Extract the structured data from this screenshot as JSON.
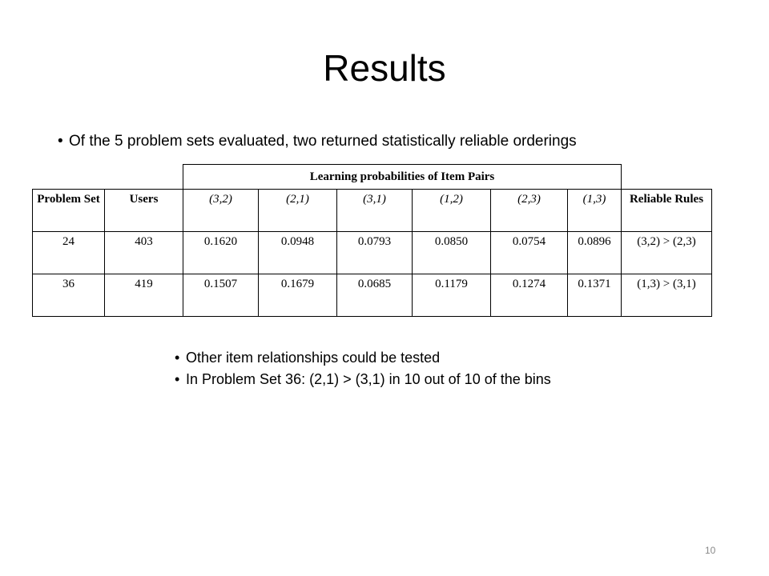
{
  "title": "Results",
  "bullets_top": [
    "Of the 5 problem sets evaluated, two returned statistically reliable orderings"
  ],
  "table": {
    "group_header": "Learning probabilities of Item Pairs",
    "headers": [
      "Problem Set",
      "Users",
      "(3,2)",
      "(2,1)",
      "(3,1)",
      "(1,2)",
      "(2,3)",
      "(1,3)",
      "Reliable Rules"
    ],
    "rows": [
      [
        "24",
        "403",
        "0.1620",
        "0.0948",
        "0.0793",
        "0.0850",
        "0.0754",
        "0.0896",
        "(3,2) > (2,3)"
      ],
      [
        "36",
        "419",
        "0.1507",
        "0.1679",
        "0.0685",
        "0.1179",
        "0.1274",
        "0.1371",
        "(1,3) > (3,1)"
      ]
    ]
  },
  "bullets_bottom": [
    "Other item relationships could be tested",
    "In Problem Set 36: (2,1) > (3,1)  in 10 out of 10 of the bins"
  ],
  "page_number": "10"
}
